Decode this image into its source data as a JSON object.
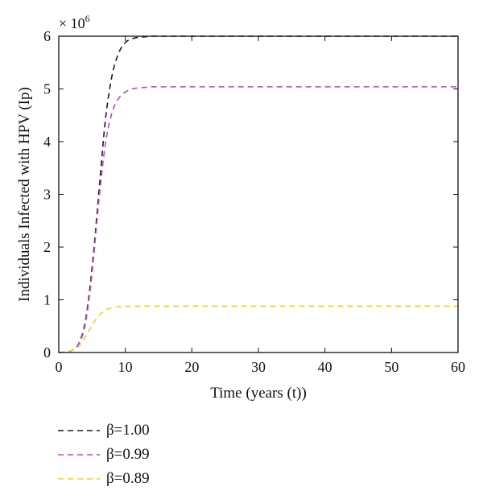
{
  "chart_data": {
    "type": "line",
    "xlabel": "Time (years (t))",
    "ylabel": "Individuals Infected with HPV (Ip)",
    "y_multiplier": "× 10",
    "y_multiplier_exp": "6",
    "xlim": [
      0,
      60
    ],
    "ylim": [
      0,
      6
    ],
    "x_ticks": [
      0,
      10,
      20,
      30,
      40,
      50,
      60
    ],
    "y_ticks": [
      0,
      1,
      2,
      3,
      4,
      5,
      6
    ],
    "grid": false,
    "legend_position": "below",
    "series": [
      {
        "name": "β=1.00",
        "color": "#1a1a1a",
        "x": [
          0,
          1,
          2,
          3,
          4,
          5,
          6,
          7,
          8,
          9,
          10,
          11,
          12,
          13,
          14,
          15,
          20,
          30,
          40,
          50,
          60
        ],
        "y": [
          0,
          0.01,
          0.04,
          0.17,
          0.6,
          1.6,
          3.0,
          4.4,
          5.25,
          5.68,
          5.88,
          5.95,
          5.98,
          5.99,
          6.0,
          6.0,
          6.0,
          6.0,
          6.0,
          6.0,
          6.0
        ]
      },
      {
        "name": "β=0.99",
        "color": "#b04fb8",
        "x": [
          0,
          1,
          2,
          3,
          4,
          5,
          6,
          7,
          8,
          9,
          10,
          11,
          12,
          13,
          14,
          15,
          20,
          30,
          40,
          50,
          60
        ],
        "y": [
          0,
          0.01,
          0.04,
          0.16,
          0.55,
          1.5,
          2.85,
          3.95,
          4.55,
          4.82,
          4.94,
          5.0,
          5.02,
          5.03,
          5.04,
          5.04,
          5.04,
          5.04,
          5.04,
          5.04,
          5.04
        ]
      },
      {
        "name": "β=0.89",
        "color": "#f0d020",
        "x": [
          0,
          1,
          2,
          3,
          4,
          5,
          6,
          7,
          8,
          9,
          10,
          11,
          12,
          13,
          14,
          15,
          20,
          30,
          40,
          50,
          60
        ],
        "y": [
          0,
          0.01,
          0.04,
          0.12,
          0.3,
          0.52,
          0.7,
          0.8,
          0.85,
          0.87,
          0.875,
          0.878,
          0.88,
          0.88,
          0.88,
          0.88,
          0.88,
          0.88,
          0.88,
          0.88,
          0.88
        ]
      }
    ]
  }
}
